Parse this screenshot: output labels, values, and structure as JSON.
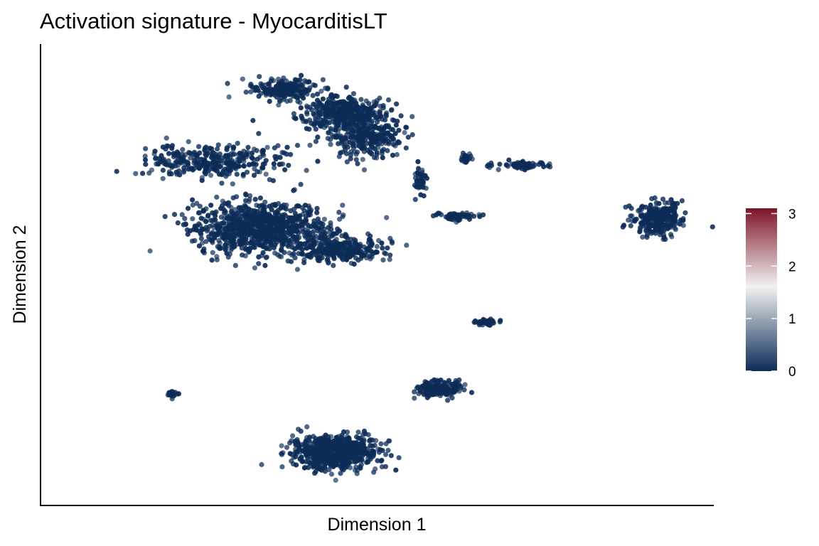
{
  "chart_data": {
    "type": "scatter",
    "title": "Activation signature - MyocarditisLT",
    "xlabel": "Dimension 1",
    "ylabel": "Dimension 2",
    "grid": false,
    "axis_ticks": false,
    "legend": {
      "position": "right",
      "type": "colorbar",
      "ticks": [
        "0",
        "1",
        "2",
        "3"
      ],
      "range": [
        0,
        3.1
      ],
      "colors": [
        "#0c2c57",
        "#f2f2f2",
        "#7d1428"
      ]
    },
    "point_color": "#0c2c57",
    "clusters": [
      {
        "cx": 0.355,
        "cy": 0.86,
        "rx": 0.045,
        "ry": 0.03,
        "n": 220
      },
      {
        "cx": 0.44,
        "cy": 0.78,
        "rx": 0.06,
        "ry": 0.05,
        "n": 420
      },
      {
        "cx": 0.48,
        "cy": 0.7,
        "rx": 0.05,
        "ry": 0.06,
        "n": 260
      },
      {
        "cx": 0.56,
        "cy": 0.56,
        "rx": 0.01,
        "ry": 0.04,
        "n": 40
      },
      {
        "cx": 0.63,
        "cy": 0.63,
        "rx": 0.008,
        "ry": 0.015,
        "n": 25
      },
      {
        "cx": 0.72,
        "cy": 0.61,
        "rx": 0.04,
        "ry": 0.012,
        "n": 60
      },
      {
        "cx": 0.25,
        "cy": 0.62,
        "rx": 0.09,
        "ry": 0.05,
        "n": 330
      },
      {
        "cx": 0.32,
        "cy": 0.4,
        "rx": 0.09,
        "ry": 0.08,
        "n": 900
      },
      {
        "cx": 0.44,
        "cy": 0.33,
        "rx": 0.06,
        "ry": 0.035,
        "n": 280
      },
      {
        "cx": 0.617,
        "cy": 0.44,
        "rx": 0.028,
        "ry": 0.012,
        "n": 60
      },
      {
        "cx": 0.92,
        "cy": 0.43,
        "rx": 0.035,
        "ry": 0.05,
        "n": 260
      },
      {
        "cx": 0.66,
        "cy": 0.09,
        "rx": 0.018,
        "ry": 0.008,
        "n": 40
      },
      {
        "cx": 0.59,
        "cy": -0.13,
        "rx": 0.03,
        "ry": 0.028,
        "n": 180
      },
      {
        "cx": 0.43,
        "cy": -0.34,
        "rx": 0.06,
        "ry": 0.05,
        "n": 650
      },
      {
        "cx": 0.185,
        "cy": -0.15,
        "rx": 0.007,
        "ry": 0.01,
        "n": 20
      }
    ]
  }
}
